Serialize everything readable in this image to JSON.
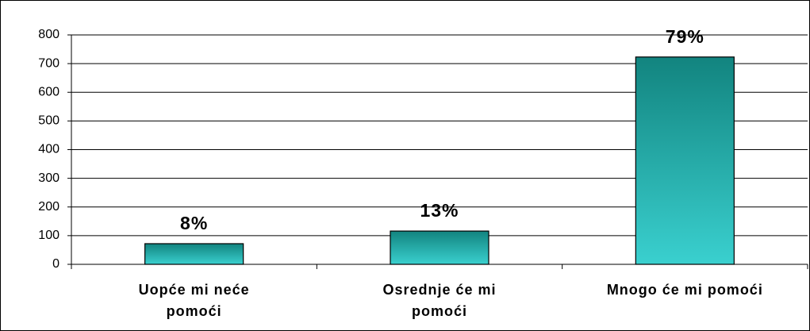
{
  "chart_data": {
    "type": "bar",
    "categories": [
      [
        "Uopće mi neće",
        "pomoći"
      ],
      [
        "Osrednje će mi",
        "pomoći"
      ],
      [
        "Mnogo će mi pomoći"
      ]
    ],
    "values": [
      72,
      116,
      723
    ],
    "annotations": [
      "8%",
      "13%",
      "79%"
    ],
    "gradient": [
      "#12847f",
      "#3ad0cf"
    ],
    "ylim": [
      0,
      800
    ],
    "yticks": [
      0,
      100,
      200,
      300,
      400,
      500,
      600,
      700,
      800
    ],
    "grid": true
  }
}
